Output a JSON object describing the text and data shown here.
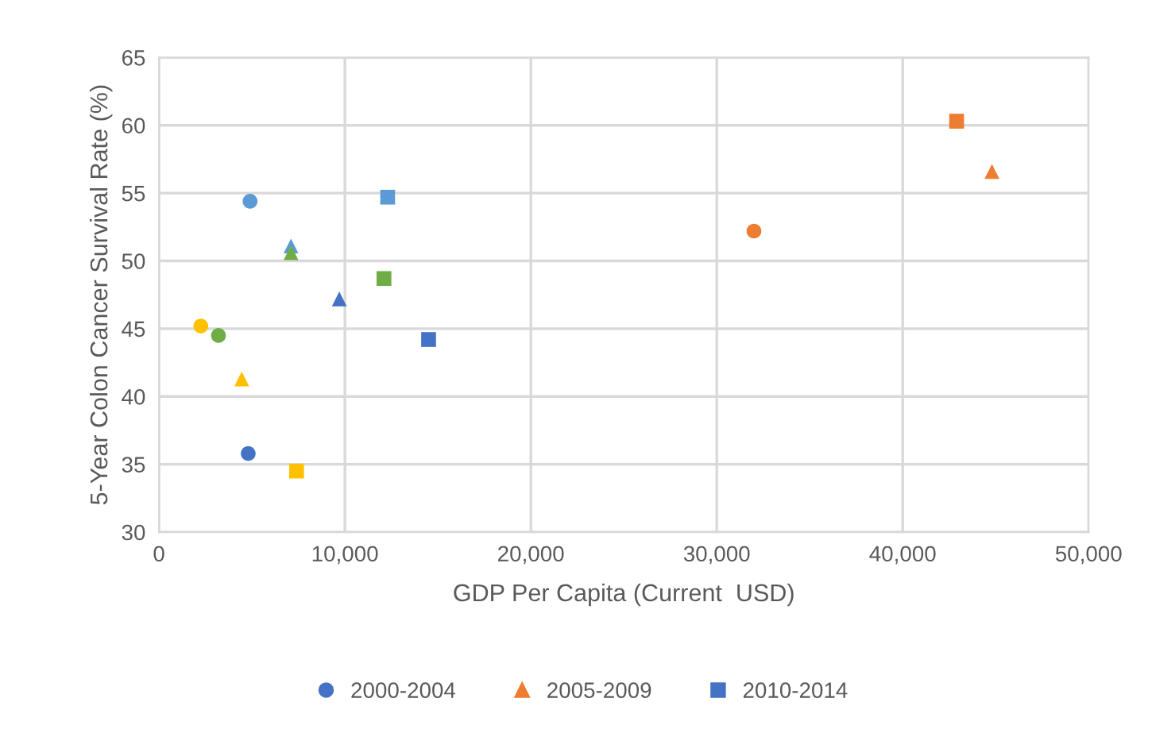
{
  "chart_data": {
    "type": "scatter",
    "xlabel": "GDP Per Capita (Current  USD)",
    "ylabel": "5-Year Colon Cancer Survival Rate (%)",
    "xlim": [
      0,
      50000
    ],
    "xticks": [
      {
        "value": 0,
        "label": "0"
      },
      {
        "value": 10000,
        "label": "10,000"
      },
      {
        "value": 20000,
        "label": "20,000"
      },
      {
        "value": 30000,
        "label": "30,000"
      },
      {
        "value": 40000,
        "label": "40,000"
      },
      {
        "value": 50000,
        "label": "50,000"
      }
    ],
    "ylim": [
      30,
      65
    ],
    "yticks": [
      30,
      35,
      40,
      45,
      50,
      55,
      60,
      65
    ],
    "grid": true,
    "legend": "bottom",
    "series": [
      {
        "name": "2000-2004",
        "marker": "circle",
        "color": "#4472c4",
        "x": [
          4900,
          4800,
          2250,
          3200,
          32000
        ],
        "values": [
          54.4,
          35.8,
          45.2,
          44.5,
          52.2
        ],
        "colors": [
          "#5b9bd5",
          "#4472c4",
          "#ffc000",
          "#70ad47",
          "#ed7d31"
        ]
      },
      {
        "name": "2005-2009",
        "marker": "triangle",
        "color": "#ed7d31",
        "x": [
          7100,
          7100,
          9700,
          4450,
          44800
        ],
        "values": [
          51.1,
          50.6,
          47.2,
          41.3,
          56.6
        ],
        "colors": [
          "#5b9bd5",
          "#70ad47",
          "#4472c4",
          "#ffc000",
          "#ed7d31"
        ]
      },
      {
        "name": "2010-2014",
        "marker": "square",
        "color": "#4472c4",
        "x": [
          12300,
          12100,
          14500,
          7400,
          42900
        ],
        "values": [
          54.7,
          48.7,
          44.2,
          34.5,
          60.3
        ],
        "colors": [
          "#5b9bd5",
          "#70ad47",
          "#4472c4",
          "#ffc000",
          "#ed7d31"
        ]
      }
    ]
  }
}
